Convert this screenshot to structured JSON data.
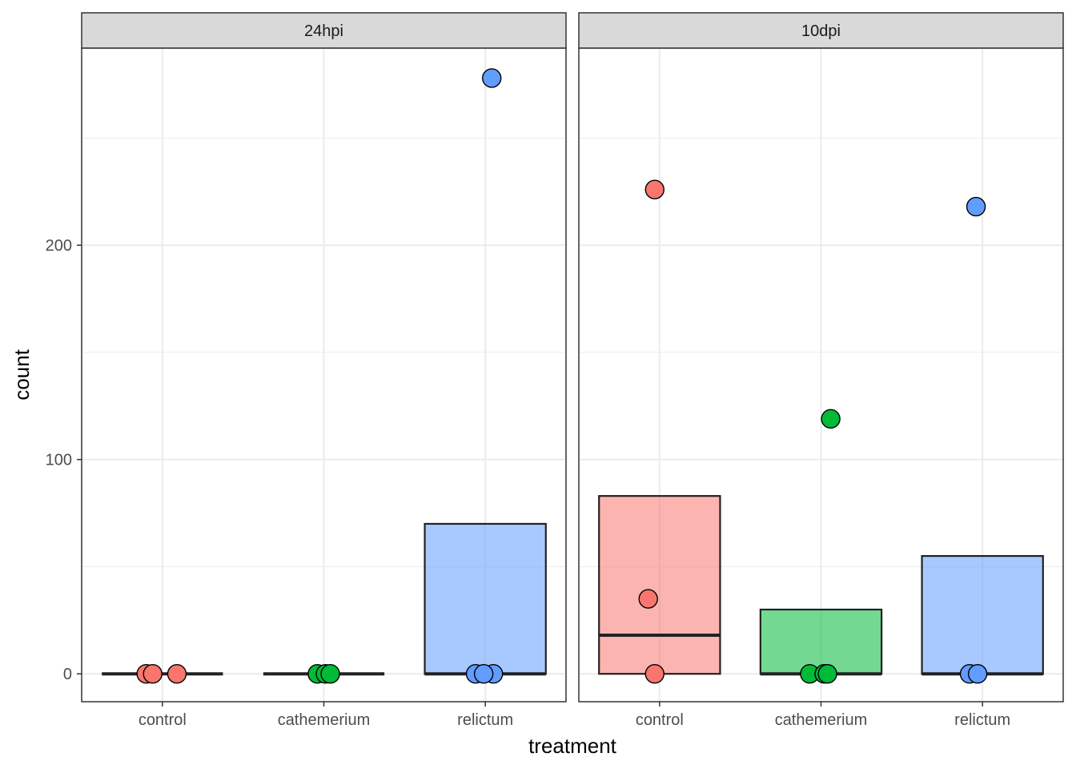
{
  "chart_data": {
    "type": "boxplot",
    "xlabel": "treatment",
    "ylabel": "count",
    "ylim": [
      -13,
      292
    ],
    "yticks": [
      0,
      100,
      200
    ],
    "ytick_labels": [
      "0",
      "100",
      "200"
    ],
    "categories": [
      "control",
      "cathemerium",
      "relictum"
    ],
    "grid": true,
    "legend": "none",
    "colors": {
      "control": "#F8766D",
      "cathemerium": "#00BA38",
      "relictum": "#619CFF"
    },
    "panels": [
      {
        "label": "24hpi",
        "boxes": [
          {
            "category": "control",
            "q1": 0,
            "median": 0,
            "q3": 0
          },
          {
            "category": "cathemerium",
            "q1": 0,
            "median": 0,
            "q3": 0
          },
          {
            "category": "relictum",
            "q1": 0,
            "median": 0,
            "q3": 70
          }
        ],
        "points": [
          {
            "category": "control",
            "jitter": -0.1,
            "value": 0
          },
          {
            "category": "control",
            "jitter": -0.06,
            "value": 0
          },
          {
            "category": "control",
            "jitter": 0.09,
            "value": 0
          },
          {
            "category": "cathemerium",
            "jitter": -0.04,
            "value": 0
          },
          {
            "category": "cathemerium",
            "jitter": 0.01,
            "value": 0
          },
          {
            "category": "cathemerium",
            "jitter": 0.04,
            "value": 0
          },
          {
            "category": "relictum",
            "jitter": -0.06,
            "value": 0
          },
          {
            "category": "relictum",
            "jitter": 0.05,
            "value": 0
          },
          {
            "category": "relictum",
            "jitter": -0.01,
            "value": 0
          },
          {
            "category": "relictum",
            "jitter": 0.04,
            "value": 278
          }
        ]
      },
      {
        "label": "10dpi",
        "boxes": [
          {
            "category": "control",
            "q1": 0,
            "median": 18,
            "q3": 83
          },
          {
            "category": "cathemerium",
            "q1": 0,
            "median": 0,
            "q3": 30
          },
          {
            "category": "relictum",
            "q1": 0,
            "median": 0,
            "q3": 55
          }
        ],
        "points": [
          {
            "category": "control",
            "jitter": -0.03,
            "value": 226
          },
          {
            "category": "control",
            "jitter": -0.07,
            "value": 35
          },
          {
            "category": "control",
            "jitter": -0.03,
            "value": 0
          },
          {
            "category": "cathemerium",
            "jitter": 0.06,
            "value": 119
          },
          {
            "category": "cathemerium",
            "jitter": -0.07,
            "value": 0
          },
          {
            "category": "cathemerium",
            "jitter": 0.02,
            "value": 0
          },
          {
            "category": "cathemerium",
            "jitter": 0.04,
            "value": 0
          },
          {
            "category": "relictum",
            "jitter": -0.04,
            "value": 218
          },
          {
            "category": "relictum",
            "jitter": -0.08,
            "value": 0
          },
          {
            "category": "relictum",
            "jitter": -0.03,
            "value": 0
          }
        ]
      }
    ]
  }
}
